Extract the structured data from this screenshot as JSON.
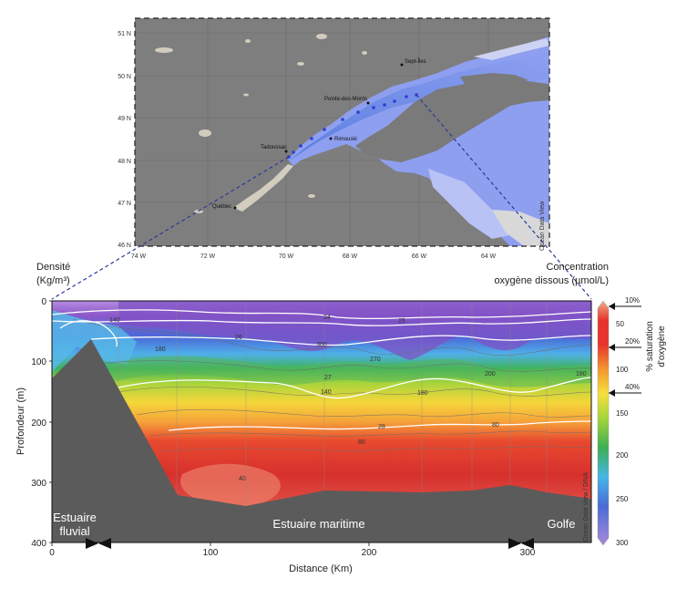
{
  "map": {
    "lat_ticks": [
      "51 N",
      "50 N",
      "49 N",
      "48 N",
      "47 N",
      "46 N"
    ],
    "lon_ticks": [
      "74 W",
      "72 W",
      "70 W",
      "68 W",
      "66 W",
      "64 W"
    ],
    "cities": [
      {
        "name": "Sept-Îles"
      },
      {
        "name": "Pointe-des-Monts"
      },
      {
        "name": "Tadoussac"
      },
      {
        "name": "Rimouski"
      },
      {
        "name": "Québec"
      }
    ],
    "credit": "Ocean Data View"
  },
  "labels": {
    "density_title_1": "Densité",
    "density_title_2": "(Kg/m³)",
    "oxygen_title_1": "Concentration",
    "oxygen_title_2": "oxygène dissous (µmol/L)",
    "estuaire_fluvial_1": "Estuaire",
    "estuaire_fluvial_2": "fluvial",
    "estuaire_maritime": "Estuaire maritime",
    "golfe": "Golfe",
    "odv_credit": "Ocean Data View / DIVA",
    "saturation_axis_1": "% saturation",
    "saturation_axis_2": "d'oxygène"
  },
  "chart_data": {
    "type": "heatmap",
    "xlabel": "Distance (Km)",
    "ylabel": "Profondeur (m)",
    "xlim": [
      0,
      340
    ],
    "ylim": [
      400,
      0
    ],
    "x_ticks": [
      "0",
      "100",
      "200",
      "300"
    ],
    "y_ticks": [
      "0",
      "100",
      "200",
      "300",
      "400"
    ],
    "density_isolines": [
      {
        "label": "24",
        "depths": [
          20,
          18,
          22,
          25,
          22,
          20,
          18,
          16
        ]
      },
      {
        "label": "25",
        "depths": [
          25,
          26,
          30,
          36,
          30,
          28,
          32,
          26
        ]
      },
      {
        "label": "26",
        "depths": [
          40,
          48,
          52,
          58,
          46,
          44,
          50,
          40
        ]
      },
      {
        "label": "27",
        "depths": [
          95,
          110,
          122,
          126,
          112,
          110,
          118,
          104
        ]
      },
      {
        "label": "28",
        "depths": [
          205,
          212,
          210,
          202,
          198,
          194,
          198,
          194
        ]
      }
    ],
    "colorbar_ticks": [
      "50",
      "100",
      "150",
      "200",
      "250",
      "300"
    ],
    "saturation_markers": [
      "10%",
      "20%",
      "40%"
    ],
    "contour_values": [
      "140",
      "180",
      "300",
      "270",
      "200",
      "180",
      "140",
      "180",
      "80",
      "80",
      "40"
    ],
    "bathymetry_depths": [
      100,
      70,
      240,
      310,
      330,
      335,
      330,
      325,
      320,
      318,
      320,
      318,
      310,
      318,
      330
    ]
  }
}
